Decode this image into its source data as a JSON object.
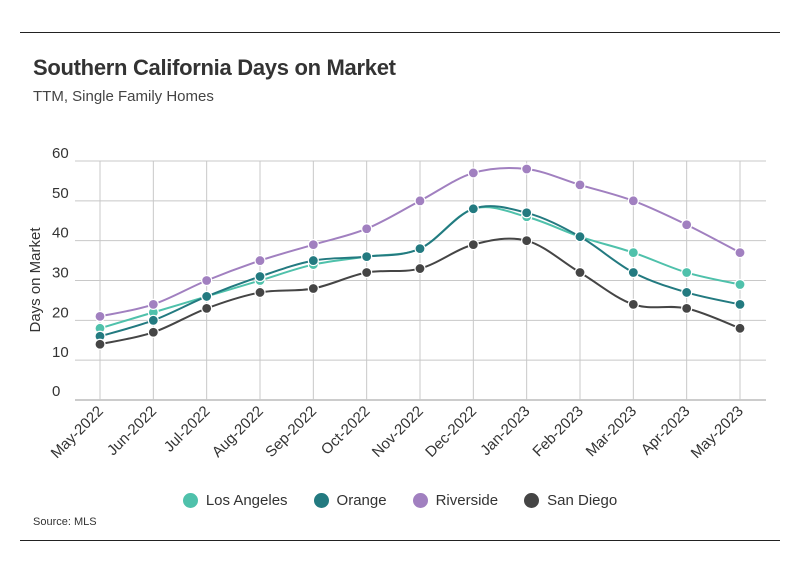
{
  "header": {
    "title": "Southern California Days on Market",
    "subtitle": "TTM, Single Family Homes"
  },
  "footer": {
    "source": "Source: MLS"
  },
  "chart_data": {
    "type": "line",
    "title": "Southern California Days on Market",
    "subtitle": "TTM, Single Family Homes",
    "xlabel": "",
    "ylabel": "Days on Market",
    "ylim": [
      0,
      60
    ],
    "yticks": [
      0,
      10,
      20,
      30,
      40,
      50,
      60
    ],
    "grid": true,
    "legend_position": "bottom",
    "categories": [
      "May-2022",
      "Jun-2022",
      "Jul-2022",
      "Aug-2022",
      "Sep-2022",
      "Oct-2022",
      "Nov-2022",
      "Dec-2022",
      "Jan-2023",
      "Feb-2023",
      "Mar-2023",
      "Apr-2023",
      "May-2023"
    ],
    "series": [
      {
        "name": "Los Angeles",
        "color": "#4fc1ab",
        "values": [
          18,
          22,
          26,
          30,
          34,
          36,
          38,
          48,
          46,
          41,
          37,
          32,
          29
        ]
      },
      {
        "name": "Orange",
        "color": "#237a80",
        "values": [
          16,
          20,
          26,
          31,
          35,
          36,
          38,
          48,
          47,
          41,
          32,
          27,
          24
        ]
      },
      {
        "name": "Riverside",
        "color": "#a180c0",
        "values": [
          21,
          24,
          30,
          35,
          39,
          43,
          50,
          57,
          58,
          54,
          50,
          44,
          37
        ]
      },
      {
        "name": "San Diego",
        "color": "#454545",
        "values": [
          14,
          17,
          23,
          27,
          28,
          32,
          33,
          39,
          40,
          32,
          24,
          23,
          18
        ]
      }
    ]
  }
}
